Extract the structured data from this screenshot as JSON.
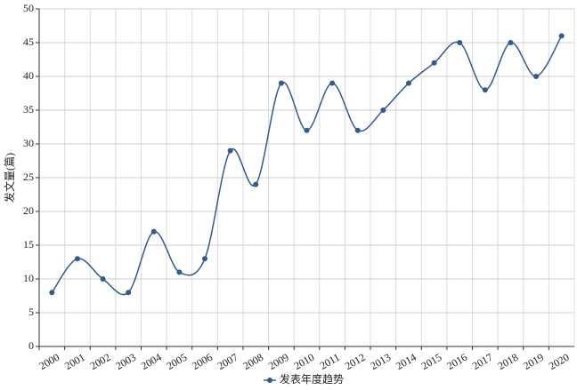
{
  "chart_data": {
    "type": "line",
    "y_label": "发文量(篇)",
    "categories": [
      "2000",
      "2001",
      "2002",
      "2003",
      "2004",
      "2005",
      "2006",
      "2007",
      "2008",
      "2009",
      "2010",
      "2011",
      "2012",
      "2013",
      "2014",
      "2015",
      "2016",
      "2017",
      "2018",
      "2019",
      "2020"
    ],
    "series": [
      {
        "name": "发表年度趋势",
        "color": "#335a8c",
        "values": [
          8,
          13,
          10,
          8,
          17,
          11,
          13,
          29,
          24,
          39,
          32,
          39,
          32,
          35,
          39,
          42,
          45,
          38,
          45,
          40,
          46
        ]
      }
    ],
    "ylim": [
      0,
      50
    ],
    "yticks": [
      0,
      5,
      10,
      15,
      20,
      25,
      30,
      35,
      40,
      45,
      50
    ],
    "grid": true,
    "smooth": true,
    "legend": "bottom"
  }
}
